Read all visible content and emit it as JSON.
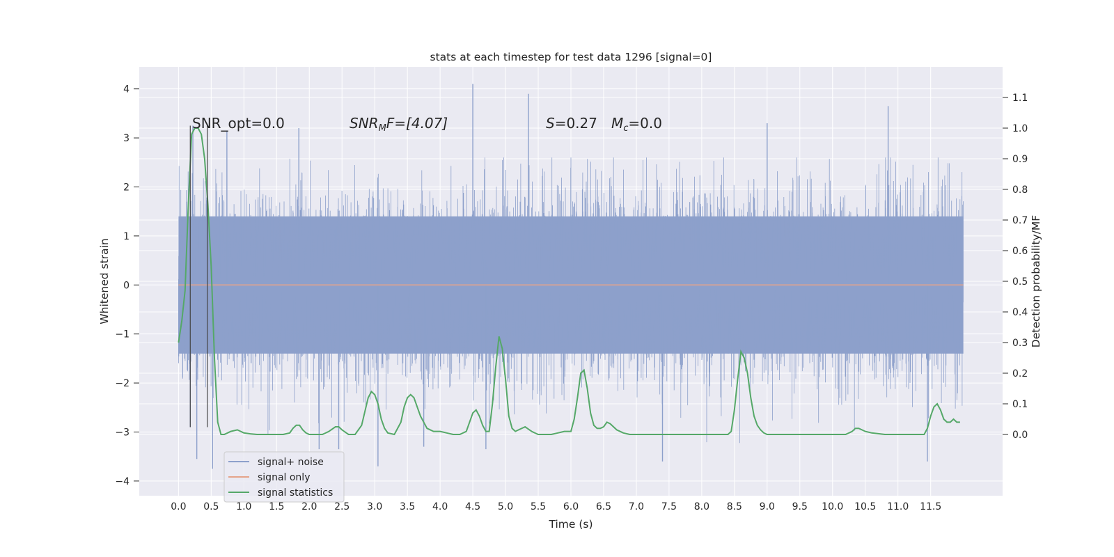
{
  "chart_data": {
    "type": "line",
    "title": "stats at each timestep for test data 1296 [signal=0]",
    "xlabel": "Time (s)",
    "ylabel_left": "Whitened strain",
    "ylabel_right": "Detection probability/MF",
    "xlim": [
      -0.6,
      12.6
    ],
    "ylim_left": [
      -4.3,
      4.45
    ],
    "ylim_right": [
      -0.2,
      1.2
    ],
    "x_ticks": [
      "0.0",
      "0.5",
      "1.0",
      "1.5",
      "2.0",
      "2.5",
      "3.0",
      "3.5",
      "4.0",
      "4.5",
      "5.0",
      "5.5",
      "6.0",
      "6.5",
      "7.0",
      "7.5",
      "8.0",
      "8.5",
      "9.0",
      "9.5",
      "10.0",
      "10.5",
      "11.0",
      "11.5"
    ],
    "y_left_ticks": [
      "4",
      "3",
      "2",
      "1",
      "0",
      "−1",
      "−2",
      "−3",
      "−4"
    ],
    "y_right_ticks": [
      "1.1",
      "1.0",
      "0.9",
      "0.8",
      "0.7",
      "0.6",
      "0.5",
      "0.4",
      "0.3",
      "0.2",
      "0.1",
      "0.0"
    ],
    "grid": true,
    "legend_placement": "lower-left",
    "legend": [
      "signal+ noise",
      "signal only",
      "signal statistics"
    ],
    "annotations": {
      "snr_opt": "SNR_opt=0.0",
      "snr_mf_base": "SNR",
      "snr_mf_sub": "M",
      "snr_mf_rest": "F=[4.07]",
      "s_label": "S",
      "s_value": "=0.27",
      "mc_base": "M",
      "mc_sub": "c",
      "mc_value": "=0.0"
    },
    "vertical_markers_x": [
      0.18,
      0.44
    ],
    "series": [
      {
        "name": "signal+ noise",
        "axis": "left",
        "color": "#8da0cb",
        "duration": 12.0,
        "core_amplitude": 1.4,
        "spikes": [
          {
            "x": 0.18,
            "y": -2.9
          },
          {
            "x": 0.22,
            "y": 3.25
          },
          {
            "x": 0.28,
            "y": -3.55
          },
          {
            "x": 0.52,
            "y": -3.75
          },
          {
            "x": 0.74,
            "y": 3.15
          },
          {
            "x": 1.84,
            "y": 3.2
          },
          {
            "x": 2.15,
            "y": -3.35
          },
          {
            "x": 2.45,
            "y": -3.35
          },
          {
            "x": 3.05,
            "y": -3.7
          },
          {
            "x": 3.75,
            "y": -3.3
          },
          {
            "x": 4.5,
            "y": 4.1
          },
          {
            "x": 4.7,
            "y": -3.35
          },
          {
            "x": 5.35,
            "y": 3.9
          },
          {
            "x": 7.4,
            "y": -3.6
          },
          {
            "x": 9.0,
            "y": 3.3
          },
          {
            "x": 10.85,
            "y": 3.65
          },
          {
            "x": 11.45,
            "y": -3.6
          }
        ]
      },
      {
        "name": "signal only",
        "axis": "left",
        "color": "#e5a38a",
        "x": [
          0.0,
          12.0
        ],
        "y": [
          0.0,
          0.0
        ]
      },
      {
        "name": "signal statistics",
        "axis": "right",
        "color": "#55a868",
        "x": [
          0.0,
          0.05,
          0.1,
          0.15,
          0.2,
          0.25,
          0.3,
          0.35,
          0.4,
          0.45,
          0.5,
          0.55,
          0.6,
          0.65,
          0.7,
          0.75,
          0.8,
          0.9,
          1.0,
          1.1,
          1.2,
          1.4,
          1.6,
          1.7,
          1.75,
          1.8,
          1.85,
          1.9,
          1.95,
          2.0,
          2.1,
          2.2,
          2.3,
          2.4,
          2.45,
          2.5,
          2.6,
          2.7,
          2.8,
          2.9,
          2.95,
          3.0,
          3.05,
          3.1,
          3.15,
          3.2,
          3.3,
          3.4,
          3.45,
          3.5,
          3.55,
          3.6,
          3.7,
          3.8,
          3.9,
          4.0,
          4.1,
          4.2,
          4.3,
          4.4,
          4.45,
          4.5,
          4.55,
          4.6,
          4.65,
          4.7,
          4.75,
          4.8,
          4.85,
          4.9,
          4.95,
          5.0,
          5.05,
          5.1,
          5.15,
          5.2,
          5.3,
          5.4,
          5.5,
          5.6,
          5.7,
          5.8,
          5.9,
          6.0,
          6.05,
          6.1,
          6.15,
          6.2,
          6.25,
          6.3,
          6.35,
          6.4,
          6.45,
          6.5,
          6.55,
          6.6,
          6.7,
          6.8,
          6.9,
          7.0,
          7.2,
          7.4,
          7.6,
          7.8,
          8.0,
          8.2,
          8.4,
          8.45,
          8.5,
          8.55,
          8.6,
          8.65,
          8.7,
          8.75,
          8.8,
          8.85,
          8.9,
          8.95,
          9.0,
          9.1,
          9.2,
          9.4,
          9.6,
          9.8,
          10.0,
          10.2,
          10.3,
          10.35,
          10.4,
          10.45,
          10.5,
          10.6,
          10.8,
          11.0,
          11.2,
          11.4,
          11.45,
          11.5,
          11.55,
          11.6,
          11.65,
          11.7,
          11.75,
          11.8,
          11.85,
          11.9,
          11.95
        ],
        "y": [
          0.3,
          0.37,
          0.47,
          0.75,
          0.98,
          1.0,
          1.0,
          0.98,
          0.9,
          0.75,
          0.55,
          0.25,
          0.04,
          0.0,
          0.0,
          0.005,
          0.01,
          0.015,
          0.005,
          0.002,
          0.0,
          0.0,
          0.0,
          0.005,
          0.02,
          0.03,
          0.03,
          0.015,
          0.005,
          0.0,
          0.0,
          0.0,
          0.01,
          0.025,
          0.025,
          0.015,
          0.0,
          0.0,
          0.03,
          0.12,
          0.14,
          0.13,
          0.1,
          0.05,
          0.02,
          0.005,
          0.0,
          0.04,
          0.09,
          0.12,
          0.13,
          0.12,
          0.06,
          0.02,
          0.01,
          0.01,
          0.005,
          0.0,
          0.0,
          0.01,
          0.04,
          0.07,
          0.08,
          0.06,
          0.03,
          0.01,
          0.01,
          0.1,
          0.22,
          0.32,
          0.28,
          0.18,
          0.06,
          0.02,
          0.01,
          0.015,
          0.025,
          0.01,
          0.0,
          0.0,
          0.0,
          0.005,
          0.01,
          0.01,
          0.05,
          0.12,
          0.2,
          0.21,
          0.15,
          0.07,
          0.03,
          0.02,
          0.02,
          0.025,
          0.04,
          0.035,
          0.015,
          0.005,
          0.0,
          0.0,
          0.0,
          0.0,
          0.0,
          0.0,
          0.0,
          0.0,
          0.0,
          0.01,
          0.08,
          0.18,
          0.27,
          0.25,
          0.2,
          0.12,
          0.06,
          0.03,
          0.015,
          0.005,
          0.0,
          0.0,
          0.0,
          0.0,
          0.0,
          0.0,
          0.0,
          0.0,
          0.01,
          0.02,
          0.02,
          0.015,
          0.01,
          0.005,
          0.0,
          0.0,
          0.0,
          0.0,
          0.02,
          0.06,
          0.09,
          0.1,
          0.08,
          0.05,
          0.04,
          0.04,
          0.05,
          0.04,
          0.04
        ]
      }
    ]
  }
}
